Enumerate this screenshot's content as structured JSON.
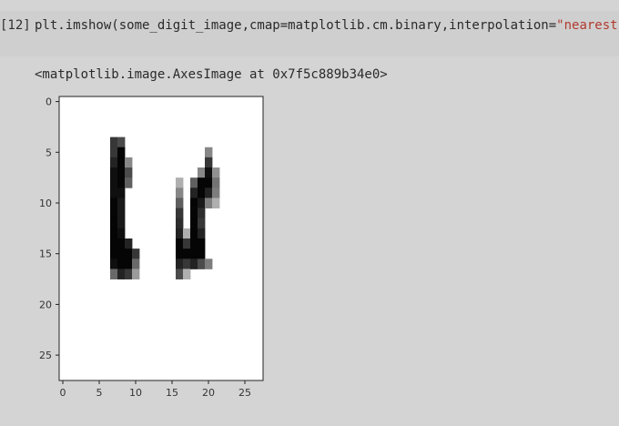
{
  "cell": {
    "prompt": "[12]",
    "code_prefix": "plt.imshow(some_digit_image,cmap=matplotlib.cm.binary,interpolation=",
    "code_string": "\"nearest\"",
    "code_suffix": ")"
  },
  "output": {
    "repr": "<matplotlib.image.AxesImage at 0x7f5c889b34e0>"
  },
  "chart_data": {
    "type": "heatmap",
    "cmap": "binary",
    "xlim": [
      0,
      27
    ],
    "ylim": [
      27,
      0
    ],
    "xticks": [
      "0",
      "5",
      "10",
      "15",
      "20",
      "25"
    ],
    "yticks": [
      "0",
      "5",
      "10",
      "15",
      "20",
      "25"
    ],
    "pixels": [
      [
        4,
        7,
        200
      ],
      [
        5,
        7,
        200
      ],
      [
        6,
        7,
        220
      ],
      [
        7,
        7,
        240
      ],
      [
        8,
        7,
        240
      ],
      [
        9,
        7,
        240
      ],
      [
        10,
        7,
        250
      ],
      [
        11,
        7,
        250
      ],
      [
        12,
        7,
        250
      ],
      [
        13,
        7,
        250
      ],
      [
        14,
        7,
        250
      ],
      [
        15,
        7,
        250
      ],
      [
        16,
        7,
        240
      ],
      [
        17,
        7,
        150
      ],
      [
        4,
        8,
        180
      ],
      [
        5,
        8,
        250
      ],
      [
        6,
        8,
        250
      ],
      [
        7,
        8,
        250
      ],
      [
        8,
        8,
        250
      ],
      [
        9,
        8,
        240
      ],
      [
        10,
        8,
        230
      ],
      [
        11,
        8,
        230
      ],
      [
        12,
        8,
        230
      ],
      [
        13,
        8,
        240
      ],
      [
        14,
        8,
        250
      ],
      [
        15,
        8,
        250
      ],
      [
        16,
        8,
        250
      ],
      [
        17,
        8,
        220
      ],
      [
        6,
        9,
        120
      ],
      [
        7,
        9,
        180
      ],
      [
        8,
        9,
        160
      ],
      [
        14,
        9,
        220
      ],
      [
        15,
        9,
        250
      ],
      [
        16,
        9,
        250
      ],
      [
        17,
        9,
        200
      ],
      [
        15,
        10,
        200
      ],
      [
        16,
        10,
        150
      ],
      [
        17,
        10,
        100
      ],
      [
        8,
        16,
        80
      ],
      [
        9,
        16,
        120
      ],
      [
        10,
        16,
        160
      ],
      [
        11,
        16,
        200
      ],
      [
        12,
        16,
        210
      ],
      [
        13,
        16,
        220
      ],
      [
        14,
        16,
        250
      ],
      [
        15,
        16,
        250
      ],
      [
        16,
        16,
        220
      ],
      [
        17,
        16,
        180
      ],
      [
        13,
        17,
        80
      ],
      [
        14,
        17,
        200
      ],
      [
        15,
        17,
        250
      ],
      [
        16,
        17,
        200
      ],
      [
        17,
        17,
        80
      ],
      [
        8,
        18,
        160
      ],
      [
        9,
        18,
        220
      ],
      [
        10,
        18,
        250
      ],
      [
        11,
        18,
        250
      ],
      [
        12,
        18,
        250
      ],
      [
        13,
        18,
        250
      ],
      [
        14,
        18,
        250
      ],
      [
        15,
        18,
        250
      ],
      [
        16,
        18,
        220
      ],
      [
        7,
        19,
        120
      ],
      [
        8,
        19,
        250
      ],
      [
        9,
        19,
        250
      ],
      [
        10,
        19,
        230
      ],
      [
        11,
        19,
        210
      ],
      [
        12,
        19,
        200
      ],
      [
        13,
        19,
        220
      ],
      [
        14,
        19,
        250
      ],
      [
        15,
        19,
        250
      ],
      [
        16,
        19,
        180
      ],
      [
        5,
        20,
        120
      ],
      [
        6,
        20,
        200
      ],
      [
        7,
        20,
        240
      ],
      [
        8,
        20,
        250
      ],
      [
        9,
        20,
        220
      ],
      [
        10,
        20,
        130
      ],
      [
        16,
        20,
        130
      ],
      [
        7,
        21,
        110
      ],
      [
        8,
        21,
        140
      ],
      [
        9,
        21,
        130
      ],
      [
        10,
        21,
        80
      ]
    ]
  }
}
